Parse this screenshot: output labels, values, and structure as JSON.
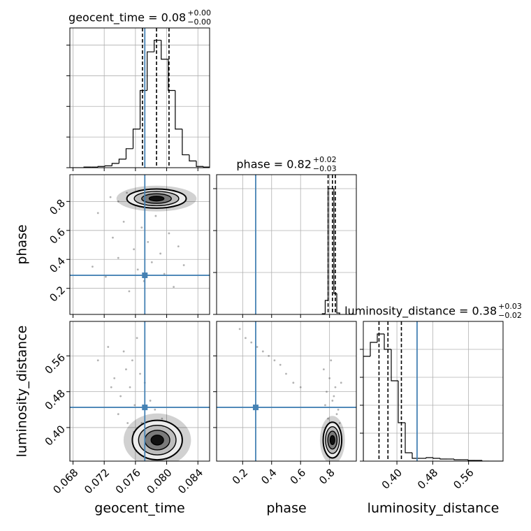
{
  "chart_data": {
    "type": "corner",
    "truth_color": "#4682b4",
    "grid": true,
    "contour_sigmas": [
      0.5,
      1,
      1.5,
      2
    ],
    "parameters": [
      {
        "label": "geocent_time",
        "lim": [
          0.0676,
          0.0855
        ],
        "ticks": [
          0.068,
          0.072,
          0.076,
          {
            "value": 0.08,
            "label": "0.080"
          },
          0.084
        ],
        "truth": 0.0772,
        "title": {
          "text": "geocent_time = 0.08",
          "plus": "+0.00",
          "minus": "−0.00"
        },
        "quantiles": [
          0.0769,
          0.0787,
          0.0803
        ],
        "hist": {
          "bins": [
            0.0676,
            0.0685,
            0.0694,
            0.0703,
            0.0712,
            0.0721,
            0.073,
            0.0739,
            0.0748,
            0.0757,
            0.0766,
            0.0775,
            0.0784,
            0.0793,
            0.0802,
            0.0811,
            0.082,
            0.0829,
            0.0838,
            0.0847,
            0.0856
          ],
          "counts": [
            0,
            0,
            1,
            1,
            2,
            3,
            7,
            14,
            31,
            63,
            126,
            189,
            208,
            177,
            126,
            63,
            21,
            11,
            2,
            1
          ],
          "ylim": [
            0,
            228
          ],
          "yticks": [
            0,
            50,
            100,
            150,
            200
          ]
        }
      },
      {
        "label": "phase",
        "lim": [
          0.02,
          0.985
        ],
        "ticks": [
          0.2,
          0.4,
          0.6,
          0.8
        ],
        "truth": 0.29,
        "title": {
          "text": "phase = 0.82",
          "plus": "+0.02",
          "minus": "−0.03"
        },
        "quantiles": [
          0.79,
          0.82,
          0.84
        ],
        "hist": {
          "bins": [
            0.75,
            0.77,
            0.79,
            0.81,
            0.83,
            0.85,
            0.87
          ],
          "counts": [
            1,
            20,
            180,
            180,
            30,
            2
          ],
          "ylim": [
            0,
            200
          ],
          "yticks": [
            0,
            60,
            120,
            180
          ]
        }
      },
      {
        "label": "luminosity_distance",
        "lim": [
          0.325,
          0.637
        ],
        "ticks": [
          {
            "value": 0.4,
            "label": "0.40"
          },
          0.48,
          0.56
        ],
        "truth": 0.445,
        "title": {
          "text": "luminosity_distance = 0.38",
          "plus": "+0.03",
          "minus": "−0.02"
        },
        "quantiles": [
          0.36,
          0.38,
          0.41
        ],
        "hist": {
          "bins": [
            0.325,
            0.3406,
            0.3562,
            0.3718,
            0.3874,
            0.403,
            0.4186,
            0.4342,
            0.4498,
            0.4654,
            0.481,
            0.4966,
            0.5122,
            0.5278,
            0.5434,
            0.559,
            0.5746,
            0.5902,
            0.6058,
            0.6214,
            0.637
          ],
          "counts": [
            150,
            170,
            182,
            160,
            115,
            55,
            12,
            4,
            4,
            5,
            4,
            3,
            3,
            2,
            2,
            1,
            1,
            0,
            0,
            0
          ],
          "ylim": [
            0,
            200
          ],
          "yticks": [
            0,
            40,
            80,
            120,
            160
          ]
        }
      }
    ],
    "pairs": [
      {
        "center": [
          0.0787,
          0.82
        ],
        "sigma": [
          0.0019,
          0.033
        ],
        "points": {
          "x": [
            0.0705,
            0.0712,
            0.0722,
            0.0731,
            0.0738,
            0.0745,
            0.0752,
            0.0758,
            0.0763,
            0.0768,
            0.0771,
            0.0776,
            0.0781,
            0.0786,
            0.0792,
            0.0797,
            0.0803,
            0.0809,
            0.0815,
            0.0822,
            0.0728,
            0.0749,
            0.0761,
            0.0795,
            0.0812,
            0.0738,
            0.0774,
            0.0819
          ],
          "y": [
            0.35,
            0.72,
            0.28,
            0.55,
            0.41,
            0.66,
            0.18,
            0.47,
            0.33,
            0.62,
            0.25,
            0.52,
            0.38,
            0.7,
            0.44,
            0.3,
            0.58,
            0.21,
            0.49,
            0.36,
            0.83,
            0.86,
            0.78,
            0.77,
            0.85,
            0.8,
            0.88,
            0.79
          ]
        }
      },
      {
        "center": [
          0.0788,
          0.372
        ],
        "sigma": [
          0.0016,
          0.022
        ],
        "points": {
          "x": [
            0.0712,
            0.0725,
            0.0733,
            0.0741,
            0.0748,
            0.0753,
            0.0759,
            0.0766,
            0.0772,
            0.0779,
            0.0745,
            0.0738,
            0.0762,
            0.0785,
            0.0729,
            0.0756,
            0.075,
            0.0768,
            0.0794,
            0.0806,
            0.0818,
            0.0774,
            0.0758,
            0.0799
          ],
          "y": [
            0.55,
            0.58,
            0.51,
            0.47,
            0.53,
            0.49,
            0.45,
            0.52,
            0.5,
            0.46,
            0.57,
            0.43,
            0.6,
            0.44,
            0.49,
            0.55,
            0.41,
            0.41,
            0.42,
            0.4,
            0.38,
            0.36,
            0.39,
            0.35
          ]
        }
      },
      {
        "center": [
          0.82,
          0.372
        ],
        "sigma": [
          0.032,
          0.02
        ],
        "points": {
          "x": [
            0.18,
            0.22,
            0.26,
            0.3,
            0.34,
            0.38,
            0.42,
            0.46,
            0.5,
            0.55,
            0.6,
            0.76,
            0.78,
            0.8,
            0.82,
            0.84,
            0.86,
            0.88,
            0.79,
            0.83,
            0.81,
            0.85,
            0.77,
            0.87
          ],
          "y": [
            0.62,
            0.6,
            0.59,
            0.58,
            0.57,
            0.56,
            0.55,
            0.54,
            0.52,
            0.5,
            0.49,
            0.53,
            0.48,
            0.51,
            0.46,
            0.49,
            0.44,
            0.5,
            0.42,
            0.47,
            0.55,
            0.43,
            0.45,
            0.41
          ]
        }
      }
    ]
  }
}
